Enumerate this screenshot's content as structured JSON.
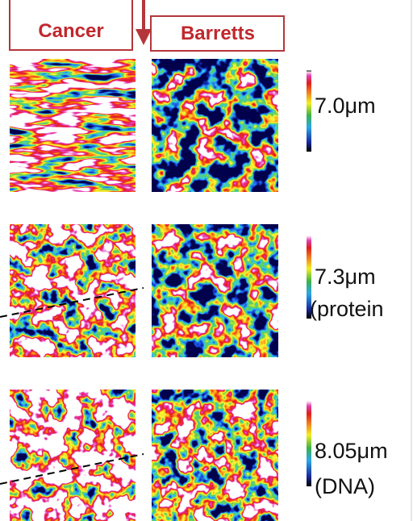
{
  "header": {
    "left": "Cancer",
    "right": "Barretts"
  },
  "rows": [
    {
      "label": "7.0μm"
    },
    {
      "label": "7.3μm",
      "sublabel": "(protein"
    },
    {
      "label": "8.05μm",
      "sublabel": "(DNA)"
    }
  ]
}
